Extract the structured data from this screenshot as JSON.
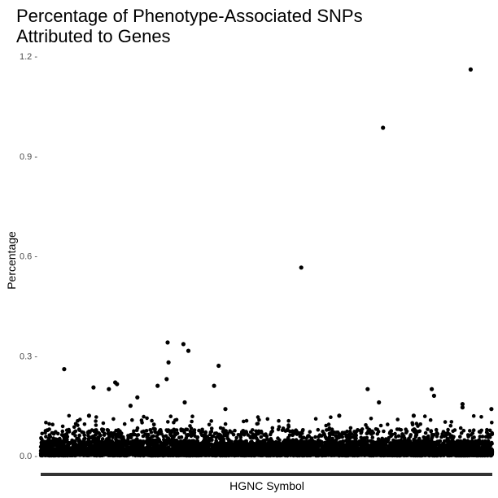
{
  "chart_data": {
    "type": "scatter",
    "title_lines": [
      "Percentage of Phenotype-Associated SNPs",
      "Attributed to Genes"
    ],
    "xlabel": "HGNC Symbol",
    "ylabel": "Percentage",
    "ylim": [
      0,
      1.2
    ],
    "xlim": [
      0,
      1
    ],
    "yticks": [
      0.0,
      0.3,
      0.6,
      0.9,
      1.2
    ],
    "ytick_labels": [
      "0.0 -",
      "0.3 -",
      "0.6 -",
      "0.9 -",
      "1.2 -"
    ],
    "grid": false,
    "legend": "none",
    "point_color": "#000000",
    "x_tick_labels_visible": false,
    "background_points": {
      "count": 9000,
      "description": "dense band of genes with small percentages (roughly 0 to 0.12), individual values not distinguishable"
    },
    "points": [
      {
        "x": 0.052,
        "y": 0.26
      },
      {
        "x": 0.281,
        "y": 0.34
      },
      {
        "x": 0.283,
        "y": 0.28
      },
      {
        "x": 0.279,
        "y": 0.23
      },
      {
        "x": 0.316,
        "y": 0.335
      },
      {
        "x": 0.327,
        "y": 0.315
      },
      {
        "x": 0.394,
        "y": 0.27
      },
      {
        "x": 0.384,
        "y": 0.21
      },
      {
        "x": 0.259,
        "y": 0.21
      },
      {
        "x": 0.165,
        "y": 0.22
      },
      {
        "x": 0.169,
        "y": 0.215
      },
      {
        "x": 0.151,
        "y": 0.2
      },
      {
        "x": 0.117,
        "y": 0.205
      },
      {
        "x": 0.214,
        "y": 0.175
      },
      {
        "x": 0.199,
        "y": 0.15
      },
      {
        "x": 0.577,
        "y": 0.565
      },
      {
        "x": 0.758,
        "y": 0.985
      },
      {
        "x": 0.952,
        "y": 1.16
      },
      {
        "x": 0.724,
        "y": 0.2
      },
      {
        "x": 0.866,
        "y": 0.2
      },
      {
        "x": 0.871,
        "y": 0.18
      },
      {
        "x": 0.749,
        "y": 0.16
      },
      {
        "x": 0.934,
        "y": 0.155
      },
      {
        "x": 0.934,
        "y": 0.145
      },
      {
        "x": 0.319,
        "y": 0.16
      },
      {
        "x": 0.409,
        "y": 0.14
      },
      {
        "x": 0.998,
        "y": 0.14
      },
      {
        "x": 0.826,
        "y": 0.12
      },
      {
        "x": 0.107,
        "y": 0.12
      },
      {
        "x": 0.661,
        "y": 0.12
      }
    ]
  }
}
